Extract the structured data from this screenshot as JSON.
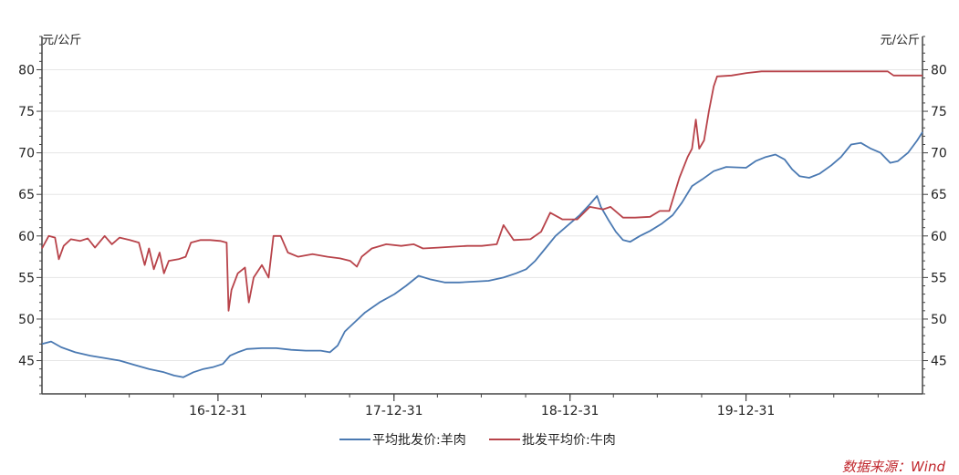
{
  "chart_data": {
    "type": "line",
    "y_unit_left": "元/公斤",
    "y_unit_right": "元/公斤",
    "ylim": [
      41,
      84
    ],
    "yticks": [
      45,
      50,
      55,
      60,
      65,
      70,
      75,
      80
    ],
    "xlim": [
      "2016-01-01",
      "2020-12-31"
    ],
    "xticks": [
      {
        "date": "2016-12-31",
        "label": "16-12-31"
      },
      {
        "date": "2017-12-31",
        "label": "17-12-31"
      },
      {
        "date": "2018-12-31",
        "label": "18-12-31"
      },
      {
        "date": "2019-12-31",
        "label": "19-12-31"
      }
    ],
    "grid": true,
    "legend_position": "bottom",
    "series": [
      {
        "name": "平均批发价:羊肉",
        "color": "#4a79b2",
        "points": [
          [
            "2016-01-01",
            47.0
          ],
          [
            "2016-01-20",
            47.3
          ],
          [
            "2016-02-10",
            46.6
          ],
          [
            "2016-03-10",
            46.0
          ],
          [
            "2016-04-10",
            45.6
          ],
          [
            "2016-05-10",
            45.3
          ],
          [
            "2016-06-10",
            45.0
          ],
          [
            "2016-07-10",
            44.5
          ],
          [
            "2016-08-10",
            44.0
          ],
          [
            "2016-09-10",
            43.6
          ],
          [
            "2016-10-01",
            43.2
          ],
          [
            "2016-10-20",
            43.0
          ],
          [
            "2016-11-10",
            43.6
          ],
          [
            "2016-12-01",
            44.0
          ],
          [
            "2016-12-20",
            44.2
          ],
          [
            "2017-01-10",
            44.6
          ],
          [
            "2017-01-25",
            45.6
          ],
          [
            "2017-02-10",
            46.0
          ],
          [
            "2017-03-01",
            46.4
          ],
          [
            "2017-04-01",
            46.5
          ],
          [
            "2017-05-01",
            46.5
          ],
          [
            "2017-06-01",
            46.3
          ],
          [
            "2017-07-01",
            46.2
          ],
          [
            "2017-08-01",
            46.2
          ],
          [
            "2017-08-20",
            46.0
          ],
          [
            "2017-09-05",
            46.8
          ],
          [
            "2017-09-20",
            48.5
          ],
          [
            "2017-10-10",
            49.6
          ],
          [
            "2017-11-01",
            50.8
          ],
          [
            "2017-12-01",
            52.0
          ],
          [
            "2018-01-01",
            53.0
          ],
          [
            "2018-01-25",
            54.0
          ],
          [
            "2018-02-20",
            55.2
          ],
          [
            "2018-03-15",
            54.8
          ],
          [
            "2018-04-15",
            54.4
          ],
          [
            "2018-05-15",
            54.4
          ],
          [
            "2018-06-15",
            54.5
          ],
          [
            "2018-07-15",
            54.6
          ],
          [
            "2018-08-15",
            55.0
          ],
          [
            "2018-09-10",
            55.5
          ],
          [
            "2018-10-01",
            56.0
          ],
          [
            "2018-10-20",
            57.0
          ],
          [
            "2018-11-10",
            58.5
          ],
          [
            "2018-12-01",
            60.0
          ],
          [
            "2018-12-31",
            61.5
          ],
          [
            "2019-01-20",
            62.5
          ],
          [
            "2019-02-10",
            63.8
          ],
          [
            "2019-02-25",
            64.8
          ],
          [
            "2019-03-05",
            63.5
          ],
          [
            "2019-03-20",
            62.0
          ],
          [
            "2019-04-05",
            60.5
          ],
          [
            "2019-04-20",
            59.5
          ],
          [
            "2019-05-05",
            59.3
          ],
          [
            "2019-05-25",
            60.0
          ],
          [
            "2019-06-15",
            60.6
          ],
          [
            "2019-07-10",
            61.5
          ],
          [
            "2019-08-01",
            62.5
          ],
          [
            "2019-08-20",
            64.0
          ],
          [
            "2019-09-10",
            66.0
          ],
          [
            "2019-10-01",
            66.8
          ],
          [
            "2019-10-25",
            67.8
          ],
          [
            "2019-11-20",
            68.3
          ],
          [
            "2019-12-31",
            68.2
          ],
          [
            "2020-01-20",
            69.0
          ],
          [
            "2020-02-10",
            69.5
          ],
          [
            "2020-03-01",
            69.8
          ],
          [
            "2020-03-20",
            69.2
          ],
          [
            "2020-04-05",
            68.0
          ],
          [
            "2020-04-20",
            67.2
          ],
          [
            "2020-05-10",
            67.0
          ],
          [
            "2020-06-01",
            67.5
          ],
          [
            "2020-06-25",
            68.5
          ],
          [
            "2020-07-15",
            69.5
          ],
          [
            "2020-08-05",
            71.0
          ],
          [
            "2020-08-25",
            71.2
          ],
          [
            "2020-09-15",
            70.5
          ],
          [
            "2020-10-05",
            70.0
          ],
          [
            "2020-10-25",
            68.8
          ],
          [
            "2020-11-10",
            69.0
          ],
          [
            "2020-12-01",
            70.0
          ],
          [
            "2020-12-20",
            71.5
          ],
          [
            "2020-12-31",
            72.5
          ]
        ]
      },
      {
        "name": "批发平均价:牛肉",
        "color": "#b8434a",
        "points": [
          [
            "2016-01-01",
            58.5
          ],
          [
            "2016-01-15",
            60.0
          ],
          [
            "2016-01-28",
            59.8
          ],
          [
            "2016-02-05",
            57.2
          ],
          [
            "2016-02-15",
            58.8
          ],
          [
            "2016-03-01",
            59.6
          ],
          [
            "2016-03-20",
            59.4
          ],
          [
            "2016-04-05",
            59.7
          ],
          [
            "2016-04-20",
            58.6
          ],
          [
            "2016-05-10",
            60.0
          ],
          [
            "2016-05-25",
            59.0
          ],
          [
            "2016-06-10",
            59.8
          ],
          [
            "2016-07-01",
            59.5
          ],
          [
            "2016-07-20",
            59.2
          ],
          [
            "2016-08-01",
            56.5
          ],
          [
            "2016-08-10",
            58.5
          ],
          [
            "2016-08-20",
            56.0
          ],
          [
            "2016-09-01",
            58.0
          ],
          [
            "2016-09-10",
            55.5
          ],
          [
            "2016-09-20",
            57.0
          ],
          [
            "2016-10-10",
            57.2
          ],
          [
            "2016-10-25",
            57.5
          ],
          [
            "2016-11-05",
            59.2
          ],
          [
            "2016-11-25",
            59.5
          ],
          [
            "2016-12-15",
            59.5
          ],
          [
            "2017-01-05",
            59.4
          ],
          [
            "2017-01-18",
            59.2
          ],
          [
            "2017-01-22",
            51.0
          ],
          [
            "2017-01-28",
            53.5
          ],
          [
            "2017-02-10",
            55.5
          ],
          [
            "2017-02-25",
            56.2
          ],
          [
            "2017-03-05",
            52.0
          ],
          [
            "2017-03-15",
            55.0
          ],
          [
            "2017-04-01",
            56.5
          ],
          [
            "2017-04-15",
            55.0
          ],
          [
            "2017-04-25",
            60.0
          ],
          [
            "2017-05-10",
            60.0
          ],
          [
            "2017-05-25",
            58.0
          ],
          [
            "2017-06-15",
            57.5
          ],
          [
            "2017-07-15",
            57.8
          ],
          [
            "2017-08-15",
            57.5
          ],
          [
            "2017-09-10",
            57.3
          ],
          [
            "2017-10-01",
            57.0
          ],
          [
            "2017-10-15",
            56.3
          ],
          [
            "2017-10-25",
            57.5
          ],
          [
            "2017-11-15",
            58.5
          ],
          [
            "2017-12-15",
            59.0
          ],
          [
            "2018-01-15",
            58.8
          ],
          [
            "2018-02-10",
            59.0
          ],
          [
            "2018-03-01",
            58.5
          ],
          [
            "2018-04-01",
            58.6
          ],
          [
            "2018-05-01",
            58.7
          ],
          [
            "2018-06-01",
            58.8
          ],
          [
            "2018-07-01",
            58.8
          ],
          [
            "2018-08-01",
            59.0
          ],
          [
            "2018-08-15",
            61.3
          ],
          [
            "2018-09-05",
            59.5
          ],
          [
            "2018-10-10",
            59.6
          ],
          [
            "2018-11-01",
            60.5
          ],
          [
            "2018-11-20",
            62.8
          ],
          [
            "2018-12-15",
            62.0
          ],
          [
            "2019-01-15",
            62.0
          ],
          [
            "2019-02-10",
            63.5
          ],
          [
            "2019-03-10",
            63.2
          ],
          [
            "2019-03-25",
            63.5
          ],
          [
            "2019-04-20",
            62.2
          ],
          [
            "2019-05-15",
            62.2
          ],
          [
            "2019-06-15",
            62.3
          ],
          [
            "2019-07-05",
            63.0
          ],
          [
            "2019-07-25",
            63.0
          ],
          [
            "2019-08-15",
            67.0
          ],
          [
            "2019-09-01",
            69.5
          ],
          [
            "2019-09-10",
            70.5
          ],
          [
            "2019-09-18",
            74.0
          ],
          [
            "2019-09-25",
            70.5
          ],
          [
            "2019-10-05",
            71.5
          ],
          [
            "2019-10-15",
            75.0
          ],
          [
            "2019-10-25",
            78.0
          ],
          [
            "2019-11-01",
            79.2
          ],
          [
            "2019-12-01",
            79.3
          ],
          [
            "2020-01-01",
            79.6
          ],
          [
            "2020-02-01",
            79.8
          ],
          [
            "2020-03-01",
            79.8
          ],
          [
            "2020-06-01",
            79.8
          ],
          [
            "2020-09-01",
            79.8
          ],
          [
            "2020-10-20",
            79.8
          ],
          [
            "2020-11-01",
            79.3
          ],
          [
            "2020-12-31",
            79.3
          ]
        ]
      }
    ]
  },
  "source": "数据来源：Wind"
}
